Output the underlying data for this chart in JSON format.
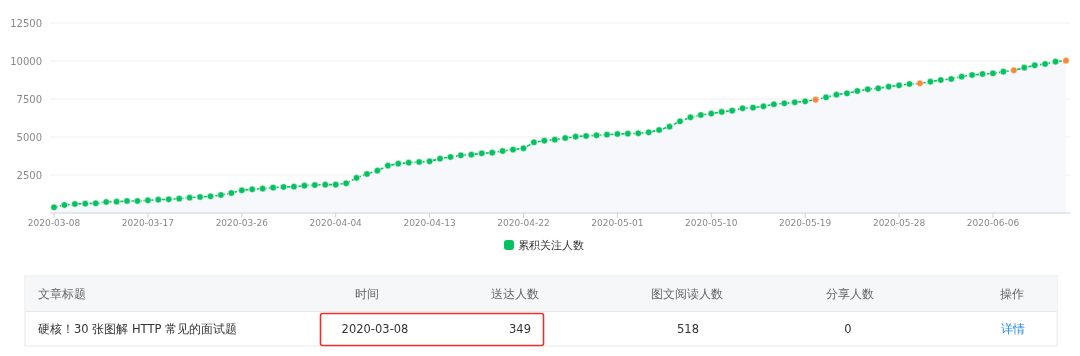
{
  "chart_data": {
    "type": "area",
    "x": [
      "2020-03-08",
      "2020-03-09",
      "2020-03-10",
      "2020-03-11",
      "2020-03-12",
      "2020-03-13",
      "2020-03-14",
      "2020-03-15",
      "2020-03-16",
      "2020-03-17",
      "2020-03-18",
      "2020-03-19",
      "2020-03-20",
      "2020-03-21",
      "2020-03-22",
      "2020-03-23",
      "2020-03-24",
      "2020-03-25",
      "2020-03-26",
      "2020-03-27",
      "2020-03-28",
      "2020-03-29",
      "2020-03-30",
      "2020-03-31",
      "2020-04-01",
      "2020-04-02",
      "2020-04-03",
      "2020-04-04",
      "2020-04-05",
      "2020-04-06",
      "2020-04-07",
      "2020-04-08",
      "2020-04-09",
      "2020-04-10",
      "2020-04-11",
      "2020-04-12",
      "2020-04-13",
      "2020-04-14",
      "2020-04-15",
      "2020-04-16",
      "2020-04-17",
      "2020-04-18",
      "2020-04-19",
      "2020-04-20",
      "2020-04-21",
      "2020-04-22",
      "2020-04-23",
      "2020-04-24",
      "2020-04-25",
      "2020-04-26",
      "2020-04-27",
      "2020-04-28",
      "2020-04-29",
      "2020-04-30",
      "2020-05-01",
      "2020-05-02",
      "2020-05-03",
      "2020-05-04",
      "2020-05-05",
      "2020-05-06",
      "2020-05-07",
      "2020-05-08",
      "2020-05-09",
      "2020-05-10",
      "2020-05-11",
      "2020-05-12",
      "2020-05-13",
      "2020-05-14",
      "2020-05-15",
      "2020-05-16",
      "2020-05-17",
      "2020-05-18",
      "2020-05-19",
      "2020-05-20",
      "2020-05-21",
      "2020-05-22",
      "2020-05-23",
      "2020-05-24",
      "2020-05-25",
      "2020-05-26",
      "2020-05-27",
      "2020-05-28",
      "2020-05-29",
      "2020-05-30",
      "2020-05-31",
      "2020-06-01",
      "2020-06-02",
      "2020-06-03",
      "2020-06-04",
      "2020-06-05",
      "2020-06-06",
      "2020-06-07",
      "2020-06-08",
      "2020-06-09",
      "2020-06-10",
      "2020-06-11",
      "2020-06-12",
      "2020-06-13"
    ],
    "series": [
      {
        "name": "累积关注人数",
        "color": "#07c160",
        "values": [
          373,
          526,
          592,
          614,
          636,
          724,
          746,
          789,
          789,
          833,
          877,
          899,
          943,
          1009,
          1053,
          1096,
          1184,
          1316,
          1491,
          1557,
          1601,
          1667,
          1711,
          1732,
          1798,
          1842,
          1864,
          1864,
          1952,
          2310,
          2566,
          2785,
          3114,
          3246,
          3311,
          3355,
          3399,
          3575,
          3684,
          3794,
          3838,
          3925,
          3969,
          4079,
          4167,
          4254,
          4649,
          4759,
          4825,
          4934,
          5022,
          5066,
          5110,
          5154,
          5197,
          5219,
          5241,
          5307,
          5461,
          5680,
          6031,
          6294,
          6447,
          6540,
          6650,
          6733,
          6886,
          6931,
          7018,
          7150,
          7215,
          7281,
          7347,
          7456,
          7610,
          7785,
          7873,
          8026,
          8136,
          8202,
          8312,
          8399,
          8487,
          8531,
          8640,
          8750,
          8816,
          8969,
          9079,
          9145,
          9189,
          9298,
          9386,
          9561,
          9715,
          9803,
          9956,
          10022
        ],
        "colors": [
          "#07c160",
          "#07c160",
          "#07c160",
          "#07c160",
          "#07c160",
          "#07c160",
          "#07c160",
          "#07c160",
          "#07c160",
          "#07c160",
          "#07c160",
          "#07c160",
          "#07c160",
          "#07c160",
          "#07c160",
          "#07c160",
          "#07c160",
          "#07c160",
          "#07c160",
          "#07c160",
          "#07c160",
          "#07c160",
          "#07c160",
          "#07c160",
          "#07c160",
          "#07c160",
          "#07c160",
          "#07c160",
          "#07c160",
          "#07c160",
          "#07c160",
          "#07c160",
          "#07c160",
          "#07c160",
          "#07c160",
          "#07c160",
          "#07c160",
          "#07c160",
          "#07c160",
          "#07c160",
          "#07c160",
          "#07c160",
          "#07c160",
          "#07c160",
          "#07c160",
          "#07c160",
          "#07c160",
          "#07c160",
          "#07c160",
          "#07c160",
          "#07c160",
          "#07c160",
          "#07c160",
          "#07c160",
          "#07c160",
          "#07c160",
          "#07c160",
          "#07c160",
          "#07c160",
          "#07c160",
          "#07c160",
          "#07c160",
          "#07c160",
          "#07c160",
          "#07c160",
          "#07c160",
          "#07c160",
          "#07c160",
          "#07c160",
          "#07c160",
          "#07c160",
          "#07c160",
          "#07c160",
          "#f5883a",
          "#07c160",
          "#07c160",
          "#07c160",
          "#07c160",
          "#07c160",
          "#07c160",
          "#07c160",
          "#07c160",
          "#07c160",
          "#f5883a",
          "#07c160",
          "#07c160",
          "#07c160",
          "#07c160",
          "#07c160",
          "#07c160",
          "#07c160",
          "#07c160",
          "#f5883a",
          "#07c160",
          "#07c160",
          "#07c160",
          "#07c160",
          "#f5883a"
        ]
      }
    ],
    "xlim": [
      "2020-03-08",
      "2020-06-13"
    ],
    "xticks": [
      "2020-03-08",
      "2020-03-17",
      "2020-03-26",
      "2020-04-04",
      "2020-04-13",
      "2020-04-22",
      "2020-05-01",
      "2020-05-10",
      "2020-05-19",
      "2020-05-28",
      "2020-06-06"
    ],
    "ylim": [
      0,
      12500
    ],
    "yticks": [
      2500,
      5000,
      7500,
      10000,
      12500
    ],
    "grid": "y",
    "legend": "bottom",
    "marker": "circle",
    "line_style": "dashed",
    "annotations": [
      "文章标题",
      "时间",
      "送达人数",
      "图文阅读人数",
      "分享人数",
      "操作",
      "硬核！30 张图解 HTTP 常见的面试题",
      "2020-03-08",
      "349",
      "518",
      "0",
      "详情"
    ]
  }
}
